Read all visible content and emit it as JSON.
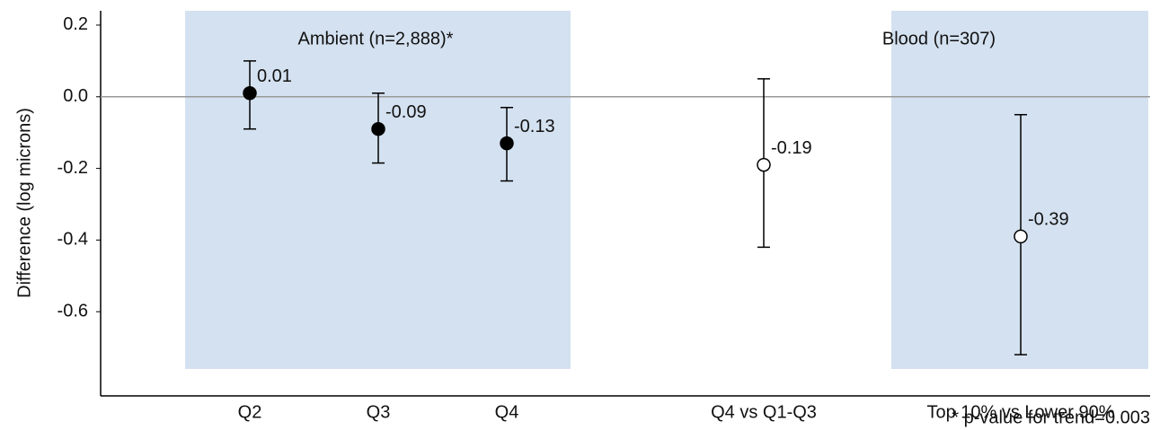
{
  "chart_data": {
    "type": "errorbar",
    "y_label": "Difference (log microns)",
    "footnote": "* p-value for trend=0.003",
    "categories": [
      "Q2",
      "Q3",
      "Q4",
      null,
      "Q4 vs Q1-Q3",
      null,
      "Top 10% vs Lower 90%"
    ],
    "series": [
      {
        "name": "Ambient (n=2,888)*",
        "color": "#000000",
        "filled": true,
        "values": [
          0.01,
          -0.09,
          -0.13,
          null,
          null,
          null,
          null
        ],
        "ci_low": [
          -0.09,
          -0.185,
          -0.235,
          null,
          null,
          null,
          null
        ],
        "ci_high": [
          0.1,
          0.01,
          -0.03,
          null,
          null,
          null,
          null
        ]
      },
      {
        "name": "Blood (n=307)",
        "color": "#000000",
        "filled": false,
        "values": [
          null,
          null,
          null,
          null,
          -0.19,
          null,
          -0.39
        ],
        "ci_low": [
          null,
          null,
          null,
          null,
          -0.42,
          null,
          -0.72
        ],
        "ci_high": [
          null,
          null,
          null,
          null,
          0.05,
          null,
          -0.05
        ]
      }
    ],
    "ylim": [
      -0.835,
      0.24
    ],
    "yticks": [
      0.2,
      {
        "value": 0,
        "label": "0.0"
      },
      -0.2,
      -0.4,
      -0.6
    ],
    "zero_line": true
  }
}
